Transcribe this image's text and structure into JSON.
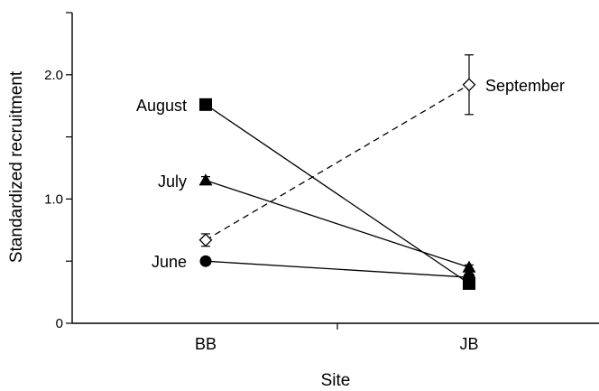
{
  "chart_data": {
    "type": "line",
    "xlabel": "Site",
    "ylabel": "Standardized recruitment",
    "categories": [
      "BB",
      "JB"
    ],
    "ylim": [
      0,
      2.5
    ],
    "yticks": [
      0,
      0.5,
      1.0,
      1.5,
      2.0,
      2.5
    ],
    "ytick_labels": [
      "0",
      "",
      "1.0",
      "",
      "2.0",
      ""
    ],
    "grid": false,
    "legend": "inline labels",
    "series": [
      {
        "name": "June",
        "marker": "filled-circle",
        "line": "solid",
        "values": [
          0.5,
          0.37
        ],
        "errors": [
          0,
          0
        ],
        "label_at": "BB"
      },
      {
        "name": "July",
        "marker": "filled-triangle",
        "line": "solid",
        "values": [
          1.15,
          0.45
        ],
        "errors": [
          0.03,
          0.02
        ],
        "label_at": "BB"
      },
      {
        "name": "August",
        "marker": "filled-square",
        "line": "solid",
        "values": [
          1.76,
          0.32
        ],
        "errors": [
          0.02,
          0.02
        ],
        "label_at": "BB"
      },
      {
        "name": "September",
        "marker": "open-diamond",
        "line": "dashed",
        "values": [
          0.67,
          1.92
        ],
        "errors": [
          0.05,
          0.24
        ],
        "label_at": "JB"
      }
    ]
  }
}
